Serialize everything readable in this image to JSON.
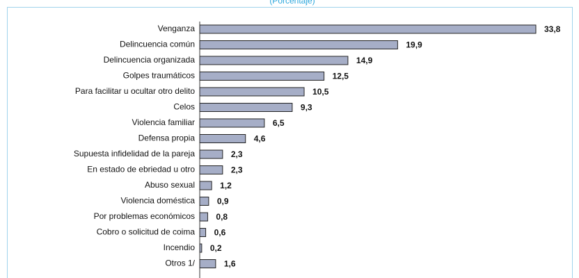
{
  "chart_data": {
    "type": "bar",
    "orientation": "horizontal",
    "subtitle": "(Porcentaje)",
    "categories": [
      "Venganza",
      "Delincuencia común",
      "Delincuencia organizada",
      "Golpes traumáticos",
      "Para facilitar u ocultar otro delito",
      "Celos",
      "Violencia familiar",
      "Defensa propia",
      "Supuesta infidelidad de la pareja",
      "En estado de ebriedad u otro",
      "Abuso sexual",
      "Violencia doméstica",
      "Por problemas económicos",
      "Cobro o solicitud de coima",
      "Incendio",
      "Otros 1/"
    ],
    "values": [
      33.8,
      19.9,
      14.9,
      12.5,
      10.5,
      9.3,
      6.5,
      4.6,
      2.3,
      2.3,
      1.2,
      0.9,
      0.8,
      0.6,
      0.2,
      1.6
    ],
    "value_labels": [
      "33,8",
      "19,9",
      "14,9",
      "12,5",
      "10,5",
      "9,3",
      "6,5",
      "4,6",
      "2,3",
      "2,3",
      "1,2",
      "0,9",
      "0,8",
      "0,6",
      "0,2",
      "1,6"
    ],
    "color": "#a6aec7"
  }
}
